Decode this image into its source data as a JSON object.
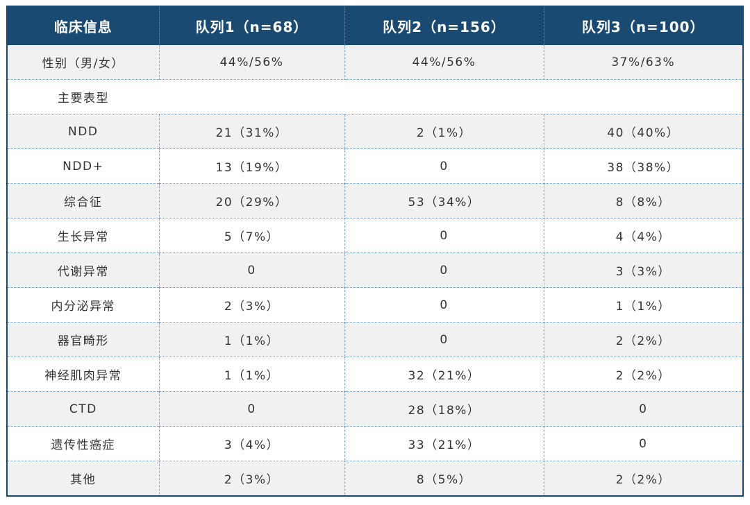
{
  "headers": [
    "临床信息",
    "队列1（n=68）",
    "队列2（n=156）",
    "队列3（n=100）"
  ],
  "gender_row": {
    "label": "性别（男/女）",
    "values": [
      "44%/56%",
      "44%/56%",
      "37%/63%"
    ]
  },
  "section_label": "主要表型",
  "rows": [
    {
      "label": "NDD",
      "values": [
        "21（31%）",
        "2（1%）",
        "40（40%）"
      ]
    },
    {
      "label": "NDD+",
      "values": [
        "13（19%）",
        "0",
        "38（38%）"
      ]
    },
    {
      "label": "综合征",
      "values": [
        "20（29%）",
        "53（34%）",
        "8（8%）"
      ]
    },
    {
      "label": "生长异常",
      "values": [
        "5（7%）",
        "0",
        "4（4%）"
      ]
    },
    {
      "label": "代谢异常",
      "values": [
        "0",
        "0",
        "3（3%）"
      ]
    },
    {
      "label": "内分泌异常",
      "values": [
        "2（3%）",
        "0",
        "1（1%）"
      ]
    },
    {
      "label": "器官畸形",
      "values": [
        "1（1%）",
        "0",
        "2（2%）"
      ]
    },
    {
      "label": "神经肌肉异常",
      "values": [
        "1（1%）",
        "32（21%）",
        "2（2%）"
      ]
    },
    {
      "label": "CTD",
      "values": [
        "0",
        "28（18%）",
        "0"
      ]
    },
    {
      "label": "遗传性癌症",
      "values": [
        "3（4%）",
        "33（21%）",
        "0"
      ]
    },
    {
      "label": "其他",
      "values": [
        "2（3%）",
        "8（5%）",
        "2（2%）"
      ]
    }
  ],
  "colors": {
    "header_bg": "#1a4a72",
    "row_grey": "#f1f1f1",
    "row_white": "#ffffff"
  }
}
